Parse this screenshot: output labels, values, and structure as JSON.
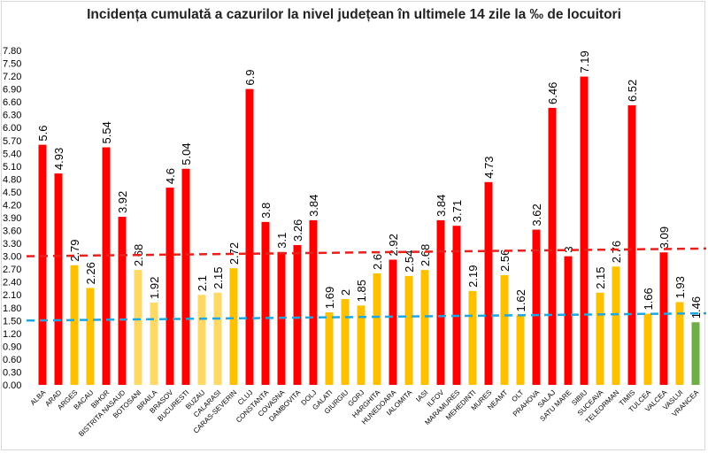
{
  "chart_data": {
    "type": "bar",
    "title": "Incidența cumulată a cazurilor la nivel județean în ultimele 14 zile la ‰ de locuitori",
    "xlabel": "",
    "ylabel": "",
    "ylim": [
      0,
      7.8
    ],
    "yticks": [
      "0.00",
      "0.30",
      "0.60",
      "0.90",
      "1.20",
      "1.50",
      "1.80",
      "2.10",
      "2.40",
      "2.70",
      "3.00",
      "3.30",
      "3.60",
      "3.90",
      "4.20",
      "4.50",
      "4.80",
      "5.10",
      "5.40",
      "5.70",
      "6.00",
      "6.30",
      "6.60",
      "6.90",
      "7.20",
      "7.50",
      "7.80"
    ],
    "grid": false,
    "legend": "none",
    "colors": {
      "red": "#ff0000",
      "orange": "#ffc000",
      "yellow": "#ffd966",
      "green": "#70ad47",
      "ref_red": "#e8201c",
      "ref_blue": "#1ea7e0"
    },
    "categories": [
      "ALBA",
      "ARAD",
      "ARGES",
      "BACAU",
      "BIHOR",
      "BISTRITA NASAUD",
      "BOTOSANI",
      "BRAILA",
      "BRASOV",
      "BUCURESTI",
      "BUZAU",
      "CALARASI",
      "CARAS-SEVERIN",
      "CLUJ",
      "CONSTANTA",
      "COVASNA",
      "DAMBOVITA",
      "DOLJ",
      "GALATI",
      "GIURGIU",
      "GORJ",
      "HARGHITA",
      "HUNEDOARA",
      "IALOMITA",
      "IASI",
      "ILFOV",
      "MARAMURES",
      "MEHEDINTI",
      "MURES",
      "NEAMT",
      "OLT",
      "PRAHOVA",
      "SALAJ",
      "SATU MARE",
      "SIBIU",
      "SUCEAVA",
      "TELEORMAN",
      "TIMIS",
      "TULCEA",
      "VALCEA",
      "VASLUI",
      "VRANCEA"
    ],
    "values": [
      5.6,
      4.93,
      2.79,
      2.26,
      5.54,
      3.92,
      2.68,
      1.92,
      4.6,
      5.04,
      2.1,
      2.15,
      2.72,
      6.9,
      3.8,
      3.1,
      3.26,
      3.84,
      1.69,
      2,
      1.85,
      2.6,
      2.92,
      2.54,
      2.68,
      3.84,
      3.71,
      2.19,
      4.73,
      2.56,
      1.62,
      3.62,
      6.46,
      3,
      7.19,
      2.15,
      2.76,
      6.52,
      1.66,
      3.09,
      1.93,
      1.46
    ],
    "data_labels": [
      "5.6",
      "4.93",
      "2.79",
      "2.26",
      "5.54",
      "3.92",
      "2.68",
      "1.92",
      "4.6",
      "5.04",
      "2.1",
      "2.15",
      "2.72",
      "6.9",
      "3.8",
      "3.1",
      "3.26",
      "3.84",
      "1.69",
      "2",
      "1.85",
      "2.6",
      "2.92",
      "2.54",
      "2.68",
      "3.84",
      "3.71",
      "2.19",
      "4.73",
      "2.56",
      "1.62",
      "3.62",
      "6.46",
      "3",
      "7.19",
      "2.15",
      "2.76",
      "6.52",
      "1.66",
      "3.09",
      "1.93",
      "1.46"
    ],
    "bar_colors": [
      "red",
      "red",
      "orange",
      "orange",
      "red",
      "red",
      "yellow",
      "yellow",
      "red",
      "red",
      "yellow",
      "yellow",
      "orange",
      "red",
      "red",
      "red",
      "red",
      "red",
      "orange",
      "orange",
      "orange",
      "orange",
      "red",
      "orange",
      "orange",
      "red",
      "red",
      "orange",
      "red",
      "orange",
      "orange",
      "red",
      "red",
      "red",
      "red",
      "orange",
      "orange",
      "red",
      "orange",
      "red",
      "orange",
      "green"
    ],
    "reference_lines": [
      {
        "color": "ref_red",
        "start": 3.0,
        "end": 3.18
      },
      {
        "color": "ref_blue",
        "start": 1.5,
        "end": 1.67
      }
    ]
  }
}
